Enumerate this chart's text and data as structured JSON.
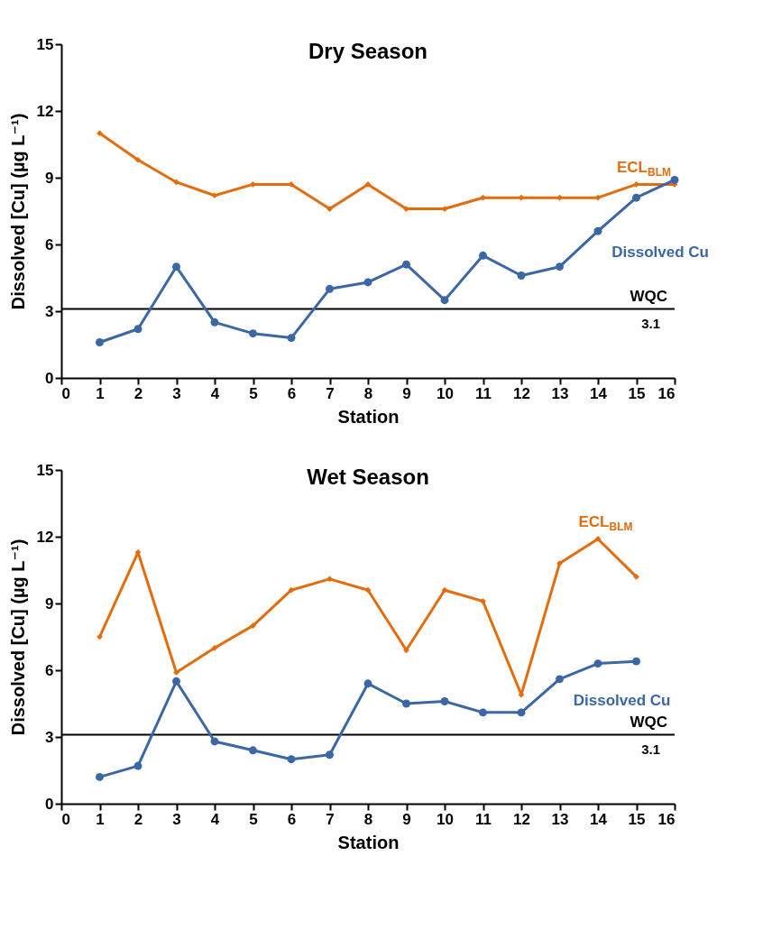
{
  "chart_data": [
    {
      "type": "line",
      "title": "Dry Season",
      "xlabel": "Station",
      "ylabel": "Dissolved [Cu] (µg L⁻¹)",
      "x": [
        1,
        2,
        3,
        4,
        5,
        6,
        7,
        8,
        9,
        10,
        11,
        12,
        13,
        14,
        15,
        16
      ],
      "xlim": [
        0,
        16
      ],
      "xticks": [
        0,
        1,
        2,
        3,
        4,
        5,
        6,
        7,
        8,
        9,
        10,
        11,
        12,
        13,
        14,
        15,
        16
      ],
      "ylim": [
        0,
        15
      ],
      "yticks": [
        0,
        3,
        6,
        9,
        12,
        15
      ],
      "grid": false,
      "series": [
        {
          "name": "ECL$_{BLM}$",
          "color": "#e46c0a",
          "marker": "diamond",
          "values": [
            11.0,
            9.8,
            8.8,
            8.2,
            8.7,
            8.7,
            7.6,
            8.7,
            7.6,
            7.6,
            8.1,
            8.1,
            8.1,
            8.1,
            8.7,
            8.7
          ]
        },
        {
          "name": "Dissolved Cu",
          "color": "#3b67a4",
          "marker": "circle",
          "values": [
            1.6,
            2.2,
            5.0,
            2.5,
            2.0,
            1.8,
            4.0,
            4.3,
            5.1,
            3.5,
            5.5,
            4.6,
            5.0,
            6.6,
            8.1,
            8.9
          ]
        }
      ],
      "ref_lines": [
        {
          "axis": "y",
          "value": 3.1,
          "label": "WQC",
          "color": "#000000"
        }
      ],
      "annotations": [
        {
          "text": "3.1",
          "y": 3.1
        }
      ]
    },
    {
      "type": "line",
      "title": "Wet Season",
      "xlabel": "Station",
      "ylabel": "Dissolved [Cu] (µg L⁻¹)",
      "x": [
        1,
        2,
        3,
        4,
        5,
        6,
        7,
        8,
        9,
        10,
        11,
        12,
        13,
        14,
        15
      ],
      "xlim": [
        0,
        16
      ],
      "xticks": [
        0,
        1,
        2,
        3,
        4,
        5,
        6,
        7,
        8,
        9,
        10,
        11,
        12,
        13,
        14,
        15,
        16
      ],
      "ylim": [
        0,
        15
      ],
      "yticks": [
        0,
        3,
        6,
        9,
        12,
        15
      ],
      "grid": false,
      "series": [
        {
          "name": "ECL$_{BLM}$",
          "color": "#e46c0a",
          "marker": "diamond",
          "values": [
            7.5,
            11.3,
            5.9,
            7.0,
            8.0,
            9.6,
            10.1,
            9.6,
            6.9,
            9.6,
            9.1,
            4.9,
            10.8,
            11.9,
            10.2
          ]
        },
        {
          "name": "Dissolved Cu",
          "color": "#3b67a4",
          "marker": "circle",
          "values": [
            1.2,
            1.7,
            5.5,
            2.8,
            2.4,
            2.0,
            2.2,
            5.4,
            4.5,
            4.6,
            4.1,
            4.1,
            5.6,
            6.3,
            6.4
          ]
        }
      ],
      "ref_lines": [
        {
          "axis": "y",
          "value": 3.1,
          "label": "WQC",
          "color": "#000000"
        }
      ],
      "annotations": [
        {
          "text": "3.1",
          "y": 3.1
        }
      ]
    }
  ]
}
